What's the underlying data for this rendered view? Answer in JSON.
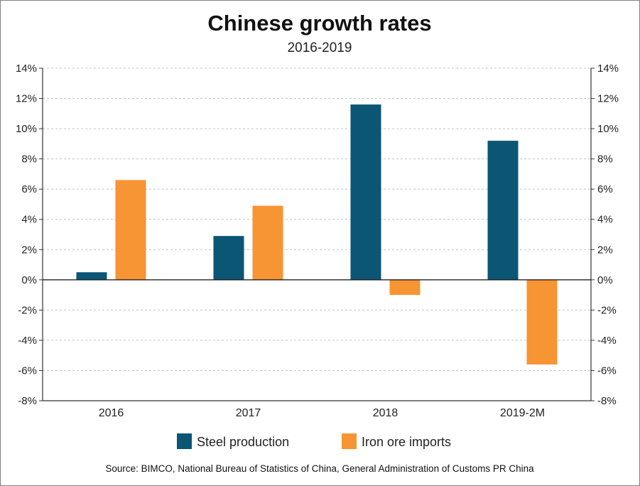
{
  "chart_data": {
    "type": "bar",
    "title": "Chinese growth rates",
    "subtitle": "2016-2019",
    "categories": [
      "2016",
      "2017",
      "2018",
      "2019-2M"
    ],
    "series": [
      {
        "name": "Steel production",
        "color": "#0b5575",
        "values": [
          0.5,
          2.9,
          11.6,
          9.2
        ]
      },
      {
        "name": "Iron ore imports",
        "color": "#f79433",
        "values": [
          6.6,
          4.9,
          -1.0,
          -5.6
        ]
      }
    ],
    "ylim": [
      -8,
      14
    ],
    "yticks": [
      -8,
      -6,
      -4,
      -2,
      0,
      2,
      4,
      6,
      8,
      10,
      12,
      14
    ],
    "ytick_labels": [
      "-8%",
      "-6%",
      "-4%",
      "-2%",
      "0%",
      "2%",
      "4%",
      "6%",
      "8%",
      "10%",
      "12%",
      "14%"
    ],
    "secondary_axis": true,
    "grid": true,
    "legend_position": "bottom",
    "source": "Source: BIMCO, National Bureau of Statistics of China, General Administration of Customs PR China"
  }
}
